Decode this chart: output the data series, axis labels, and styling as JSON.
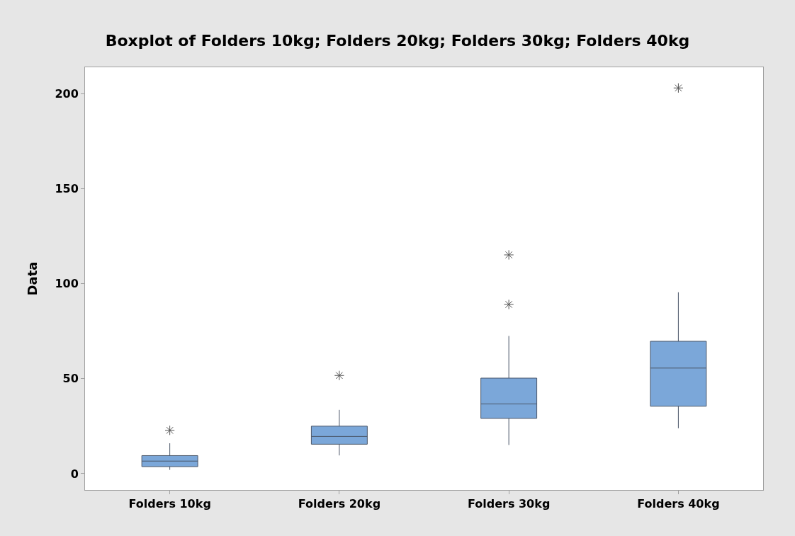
{
  "chart_data": {
    "type": "box",
    "title": "Boxplot of Folders 10kg; Folders 20kg; Folders 30kg; Folders 40kg",
    "ylabel": "Data",
    "categories": [
      "Folders 10kg",
      "Folders 20kg",
      "Folders 30kg",
      "Folders 40kg"
    ],
    "color": "#7ba7d9",
    "boxes": [
      {
        "low": 2.0,
        "q1": 3.7,
        "median": 6.6,
        "q3": 9.5,
        "high": 16.0,
        "outliers": [
          22.8
        ]
      },
      {
        "low": 9.6,
        "q1": 15.5,
        "median": 19.6,
        "q3": 25.0,
        "high": 33.6,
        "outliers": [
          51.7
        ]
      },
      {
        "low": 15.1,
        "q1": 29.1,
        "median": 36.7,
        "q3": 50.3,
        "high": 72.5,
        "outliers": [
          89.1,
          115.2
        ]
      },
      {
        "low": 23.9,
        "q1": 35.5,
        "median": 55.6,
        "q3": 69.7,
        "high": 95.5,
        "outliers": [
          203.1
        ]
      }
    ],
    "ylim": [
      -8.6,
      214
    ],
    "yticks": [
      0,
      50,
      100,
      150,
      200
    ],
    "grid": false
  }
}
